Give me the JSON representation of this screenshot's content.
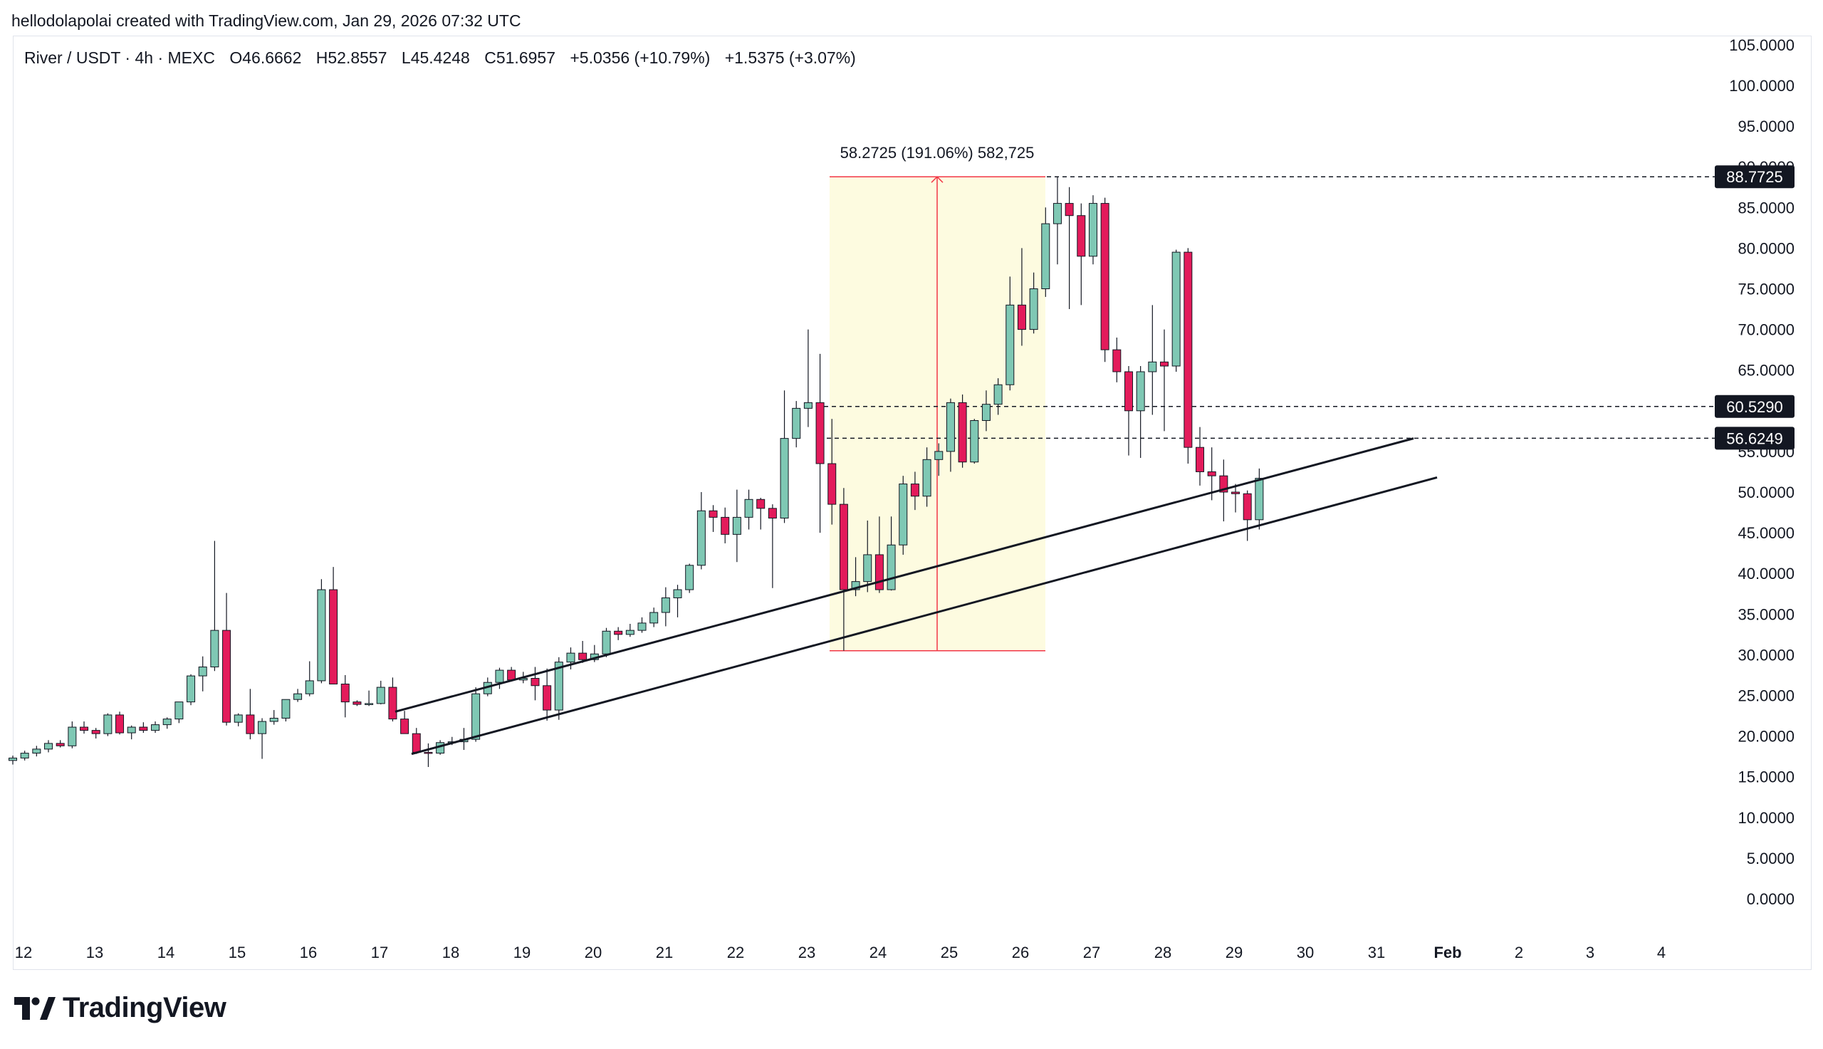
{
  "header": {
    "text": "hellodolapolai created with TradingView.com, Jan 29, 2026 07:32 UTC"
  },
  "legend": {
    "symbol": "River / USDT · 4h · MEXC",
    "open": "O46.6662",
    "high": "H52.8557",
    "low": "L45.4248",
    "close": "C51.6957",
    "change": "+5.0356 (+10.79%)",
    "change2": "+1.5375 (+3.07%)"
  },
  "brand": {
    "name": "TradingView"
  },
  "colors": {
    "up": "#7fc8b4",
    "down": "#e31b5b",
    "range_fill": "#fdfbe0",
    "range_line": "#f23645",
    "label_bg": "#131722"
  },
  "chart_data": {
    "type": "candlestick",
    "interval": "4h",
    "y_axis": {
      "ticks": [
        "105.0000",
        "100.0000",
        "95.0000",
        "90.0000",
        "85.0000",
        "80.0000",
        "75.0000",
        "70.0000",
        "65.0000",
        "60.0000",
        "55.0000",
        "50.0000",
        "45.0000",
        "40.0000",
        "35.0000",
        "30.0000",
        "25.0000",
        "20.0000",
        "15.0000",
        "10.0000",
        "5.0000",
        "0.0000"
      ],
      "range": [
        -2,
        106
      ]
    },
    "x_axis": {
      "ticks": [
        "12",
        "13",
        "14",
        "15",
        "16",
        "17",
        "18",
        "19",
        "20",
        "21",
        "22",
        "23",
        "24",
        "25",
        "26",
        "27",
        "28",
        "29",
        "30",
        "31",
        "Feb",
        "2",
        "3",
        "4"
      ],
      "bold": [
        "Feb"
      ]
    },
    "candles": [
      [
        17.0,
        17.6,
        16.5,
        17.3
      ],
      [
        17.3,
        18.2,
        17.0,
        17.9
      ],
      [
        17.9,
        18.8,
        17.5,
        18.4
      ],
      [
        18.4,
        19.5,
        18.0,
        19.1
      ],
      [
        19.1,
        19.5,
        18.6,
        18.8
      ],
      [
        18.8,
        21.8,
        18.5,
        21.1
      ],
      [
        21.1,
        21.8,
        20.3,
        20.7
      ],
      [
        20.7,
        21.0,
        19.7,
        20.3
      ],
      [
        20.3,
        22.8,
        20.0,
        22.6
      ],
      [
        22.6,
        23.0,
        20.2,
        20.4
      ],
      [
        20.4,
        21.3,
        19.6,
        21.1
      ],
      [
        21.1,
        21.7,
        20.4,
        20.7
      ],
      [
        20.7,
        21.8,
        20.4,
        21.4
      ],
      [
        21.4,
        22.3,
        20.9,
        22.1
      ],
      [
        22.1,
        24.0,
        21.6,
        24.2
      ],
      [
        24.2,
        27.6,
        23.8,
        27.4
      ],
      [
        27.4,
        29.8,
        25.5,
        28.5
      ],
      [
        28.5,
        44.0,
        28.0,
        33.0
      ],
      [
        33.0,
        37.6,
        21.3,
        21.7
      ],
      [
        21.7,
        22.8,
        21.2,
        22.6
      ],
      [
        22.6,
        25.8,
        19.6,
        20.3
      ],
      [
        20.3,
        22.2,
        17.2,
        21.8
      ],
      [
        21.8,
        23.2,
        21.4,
        22.2
      ],
      [
        22.2,
        24.5,
        21.8,
        24.5
      ],
      [
        24.5,
        25.8,
        24.2,
        25.2
      ],
      [
        25.2,
        29.2,
        24.9,
        26.8
      ],
      [
        26.8,
        39.3,
        26.5,
        38.0
      ],
      [
        38.0,
        40.8,
        26.5,
        26.4
      ],
      [
        26.4,
        27.5,
        22.3,
        24.2
      ],
      [
        24.2,
        24.4,
        23.7,
        23.9
      ],
      [
        23.9,
        25.6,
        23.7,
        24.0
      ],
      [
        24.0,
        26.8,
        23.9,
        26.0
      ],
      [
        26.0,
        27.2,
        21.8,
        22.1
      ],
      [
        22.1,
        23.1,
        20.7,
        20.3
      ],
      [
        20.3,
        21.0,
        17.8,
        18.0
      ],
      [
        18.0,
        19.1,
        16.2,
        17.9
      ],
      [
        17.9,
        19.5,
        17.7,
        19.2
      ],
      [
        19.2,
        19.9,
        18.9,
        19.3
      ],
      [
        19.3,
        21.0,
        18.3,
        19.6
      ],
      [
        19.6,
        26.0,
        19.3,
        25.2
      ],
      [
        25.2,
        27.2,
        24.9,
        26.6
      ],
      [
        26.6,
        28.4,
        25.8,
        28.1
      ],
      [
        28.1,
        28.5,
        26.7,
        26.9
      ],
      [
        26.9,
        27.9,
        26.5,
        27.1
      ],
      [
        27.1,
        28.5,
        24.4,
        26.2
      ],
      [
        26.2,
        28.3,
        21.9,
        23.2
      ],
      [
        23.2,
        29.7,
        22.0,
        29.1
      ],
      [
        29.1,
        30.9,
        28.2,
        30.2
      ],
      [
        30.2,
        31.7,
        29.0,
        29.4
      ],
      [
        29.4,
        31.2,
        29.1,
        30.1
      ],
      [
        30.1,
        33.3,
        29.7,
        32.9
      ],
      [
        32.9,
        33.4,
        31.8,
        32.5
      ],
      [
        32.5,
        33.8,
        32.2,
        33.0
      ],
      [
        33.0,
        34.6,
        32.7,
        33.9
      ],
      [
        33.9,
        35.8,
        33.4,
        35.2
      ],
      [
        35.2,
        38.3,
        33.5,
        37.0
      ],
      [
        37.0,
        38.6,
        34.6,
        38.0
      ],
      [
        38.0,
        41.2,
        37.6,
        41.0
      ],
      [
        41.0,
        50.0,
        40.5,
        47.7
      ],
      [
        47.7,
        48.4,
        45.1,
        46.9
      ],
      [
        46.9,
        48.1,
        43.7,
        44.8
      ],
      [
        44.8,
        50.3,
        41.4,
        46.9
      ],
      [
        46.9,
        50.3,
        45.4,
        49.1
      ],
      [
        49.1,
        49.3,
        45.4,
        48.0
      ],
      [
        48.0,
        48.5,
        38.2,
        46.8
      ],
      [
        46.8,
        62.5,
        46.2,
        56.6
      ],
      [
        56.6,
        61.2,
        55.5,
        60.3
      ],
      [
        60.3,
        70.0,
        58.0,
        61.0
      ],
      [
        61.0,
        67.0,
        45.0,
        53.5
      ],
      [
        53.5,
        59.0,
        46.0,
        48.5
      ],
      [
        48.5,
        50.5,
        30.5,
        38.0
      ],
      [
        38.0,
        42.0,
        37.2,
        39.0
      ],
      [
        39.0,
        46.5,
        37.7,
        42.3
      ],
      [
        42.3,
        47.0,
        37.6,
        38.0
      ],
      [
        38.0,
        47.0,
        37.9,
        43.5
      ],
      [
        43.5,
        52.0,
        42.3,
        51.0
      ],
      [
        51.0,
        52.5,
        47.8,
        49.5
      ],
      [
        49.5,
        55.5,
        48.2,
        54.0
      ],
      [
        54.0,
        56.0,
        52.0,
        55.0
      ],
      [
        55.0,
        61.5,
        52.5,
        61.0
      ],
      [
        61.0,
        62.0,
        53.0,
        53.7
      ],
      [
        53.7,
        59.0,
        53.5,
        58.8
      ],
      [
        58.8,
        62.5,
        57.5,
        60.8
      ],
      [
        60.8,
        64.0,
        59.5,
        63.2
      ],
      [
        63.2,
        76.5,
        62.5,
        73.0
      ],
      [
        73.0,
        80.0,
        68.0,
        70.0
      ],
      [
        70.0,
        77.0,
        69.5,
        75.0
      ],
      [
        75.0,
        85.0,
        74.0,
        83.0
      ],
      [
        83.0,
        88.7,
        78.0,
        85.5
      ],
      [
        85.5,
        87.5,
        72.5,
        84.0
      ],
      [
        84.0,
        85.5,
        73.0,
        79.0
      ],
      [
        79.0,
        86.5,
        78.0,
        85.5
      ],
      [
        85.5,
        86.2,
        66.0,
        67.5
      ],
      [
        67.5,
        69.0,
        63.5,
        64.8
      ],
      [
        64.8,
        65.5,
        54.5,
        60.0
      ],
      [
        60.0,
        65.5,
        54.2,
        64.8
      ],
      [
        64.8,
        73.0,
        59.5,
        66.0
      ],
      [
        66.0,
        70.0,
        57.5,
        65.5
      ],
      [
        65.5,
        79.8,
        64.8,
        79.5
      ],
      [
        79.5,
        80.0,
        53.5,
        55.5
      ],
      [
        55.5,
        58.0,
        50.8,
        52.5
      ],
      [
        52.5,
        55.5,
        49.0,
        52.0
      ],
      [
        52.0,
        54.0,
        46.4,
        50.0
      ],
      [
        50.0,
        51.0,
        47.5,
        49.8
      ],
      [
        49.8,
        50.2,
        44.0,
        46.6
      ],
      [
        46.6,
        52.9,
        45.4,
        51.7
      ]
    ],
    "annotations": {
      "range_measure": {
        "label": "58.2725 (191.06%) 582,725",
        "from_price": 30.5,
        "to_price": 88.7725
      },
      "price_labels": [
        "88.7725",
        "60.5290",
        "56.6249"
      ],
      "horizontal_levels": [
        88.7725,
        60.529,
        56.6249
      ],
      "trendlines": [
        {
          "from": {
            "date": "Jan 17, 2026",
            "price": 23.0
          },
          "to": {
            "date": "Jan 31, 2026",
            "price": 56.6
          }
        },
        {
          "from": {
            "date": "Jan 17, 2026",
            "price": 17.8
          },
          "to": {
            "date": "Jan 31, 2026",
            "price": 51.8
          }
        }
      ]
    },
    "grid": false
  }
}
